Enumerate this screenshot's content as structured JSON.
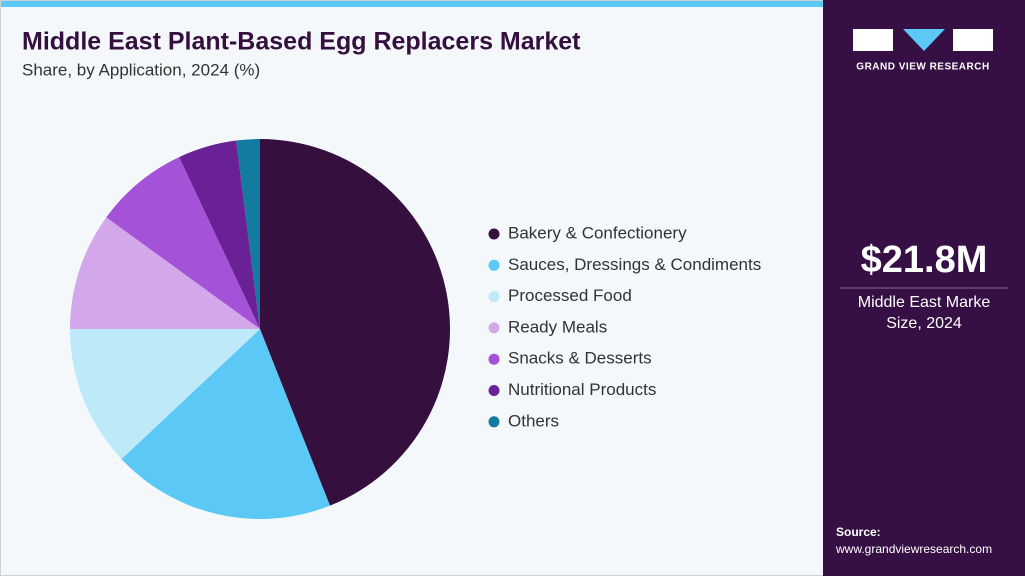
{
  "chart_data": {
    "type": "pie",
    "title": "Middle East Plant-Based Egg Replacers Market",
    "subtitle": "Share, by Application, 2024 (%)",
    "categories": [
      "Bakery & Confectionery",
      "Sauces, Dressings & Condiments",
      "Processed Food",
      "Ready Meals",
      "Snacks & Desserts",
      "Nutritional Products",
      "Others"
    ],
    "values": [
      44,
      19,
      12,
      10,
      8,
      5,
      2
    ],
    "colors": [
      "#35103f",
      "#5bc8f5",
      "#bde9f9",
      "#d3a8ea",
      "#a452d8",
      "#6b2196",
      "#137aa0"
    ]
  },
  "sidebar": {
    "logo_text": "GRAND VIEW RESEARCH",
    "market_value": "$21.8M",
    "market_label": [
      "Middle East Marke",
      "Size, 2024"
    ],
    "source_label": "Source:",
    "source_url": "www.grandviewresearch.com"
  }
}
